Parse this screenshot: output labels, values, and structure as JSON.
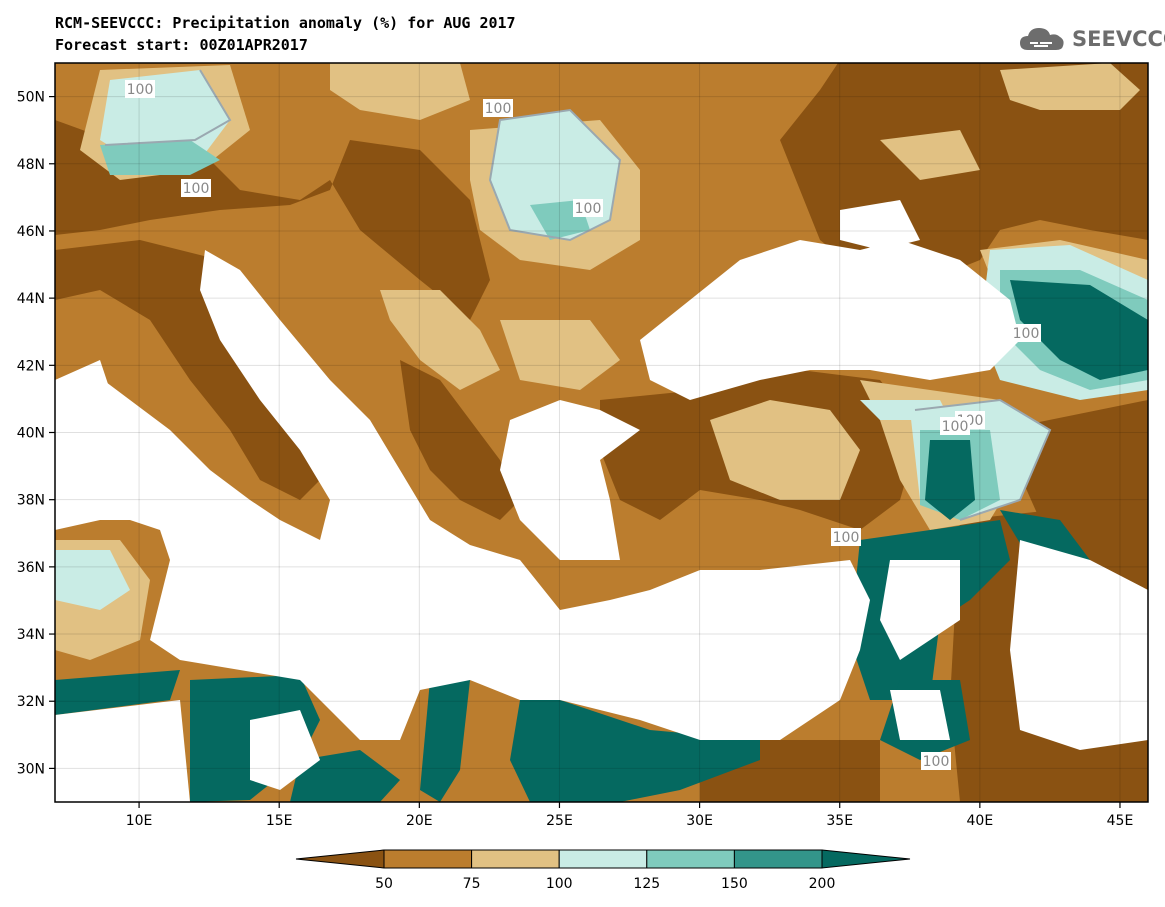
{
  "title": {
    "line1": "RCM-SEEVCCC: Precipitation anomaly (%) for AUG 2017",
    "line2": "Forecast start: 00Z01APR2017"
  },
  "logo": {
    "text": "SEEVCCC",
    "icon": "cloud-icon"
  },
  "map": {
    "lon_range": [
      7,
      46
    ],
    "lat_range": [
      29,
      51
    ],
    "lat_ticks": [
      "50N",
      "48N",
      "46N",
      "44N",
      "42N",
      "40N",
      "38N",
      "36N",
      "34N",
      "32N",
      "30N"
    ],
    "lat_values": [
      50,
      48,
      46,
      44,
      42,
      40,
      38,
      36,
      34,
      32,
      30
    ],
    "lon_ticks": [
      "10E",
      "15E",
      "20E",
      "25E",
      "30E",
      "35E",
      "40E",
      "45E"
    ],
    "lon_values": [
      10,
      15,
      20,
      25,
      30,
      35,
      40,
      45
    ],
    "contour_label": "100"
  },
  "legend": {
    "labels": [
      "50",
      "75",
      "100",
      "125",
      "150",
      "200"
    ],
    "colors": [
      "#8a5212",
      "#bb7d2e",
      "#e1c183",
      "#c9ece5",
      "#7fcbbd",
      "#33958a",
      "#056960"
    ]
  },
  "colors": {
    "dry_strong": "#8a5212",
    "dry": "#bb7d2e",
    "dry_light": "#e1c183",
    "wet_light": "#c9ece5",
    "wet": "#7fcbbd",
    "wet_mid": "#33958a",
    "wet_strong": "#056960",
    "sea": "#ffffff"
  }
}
